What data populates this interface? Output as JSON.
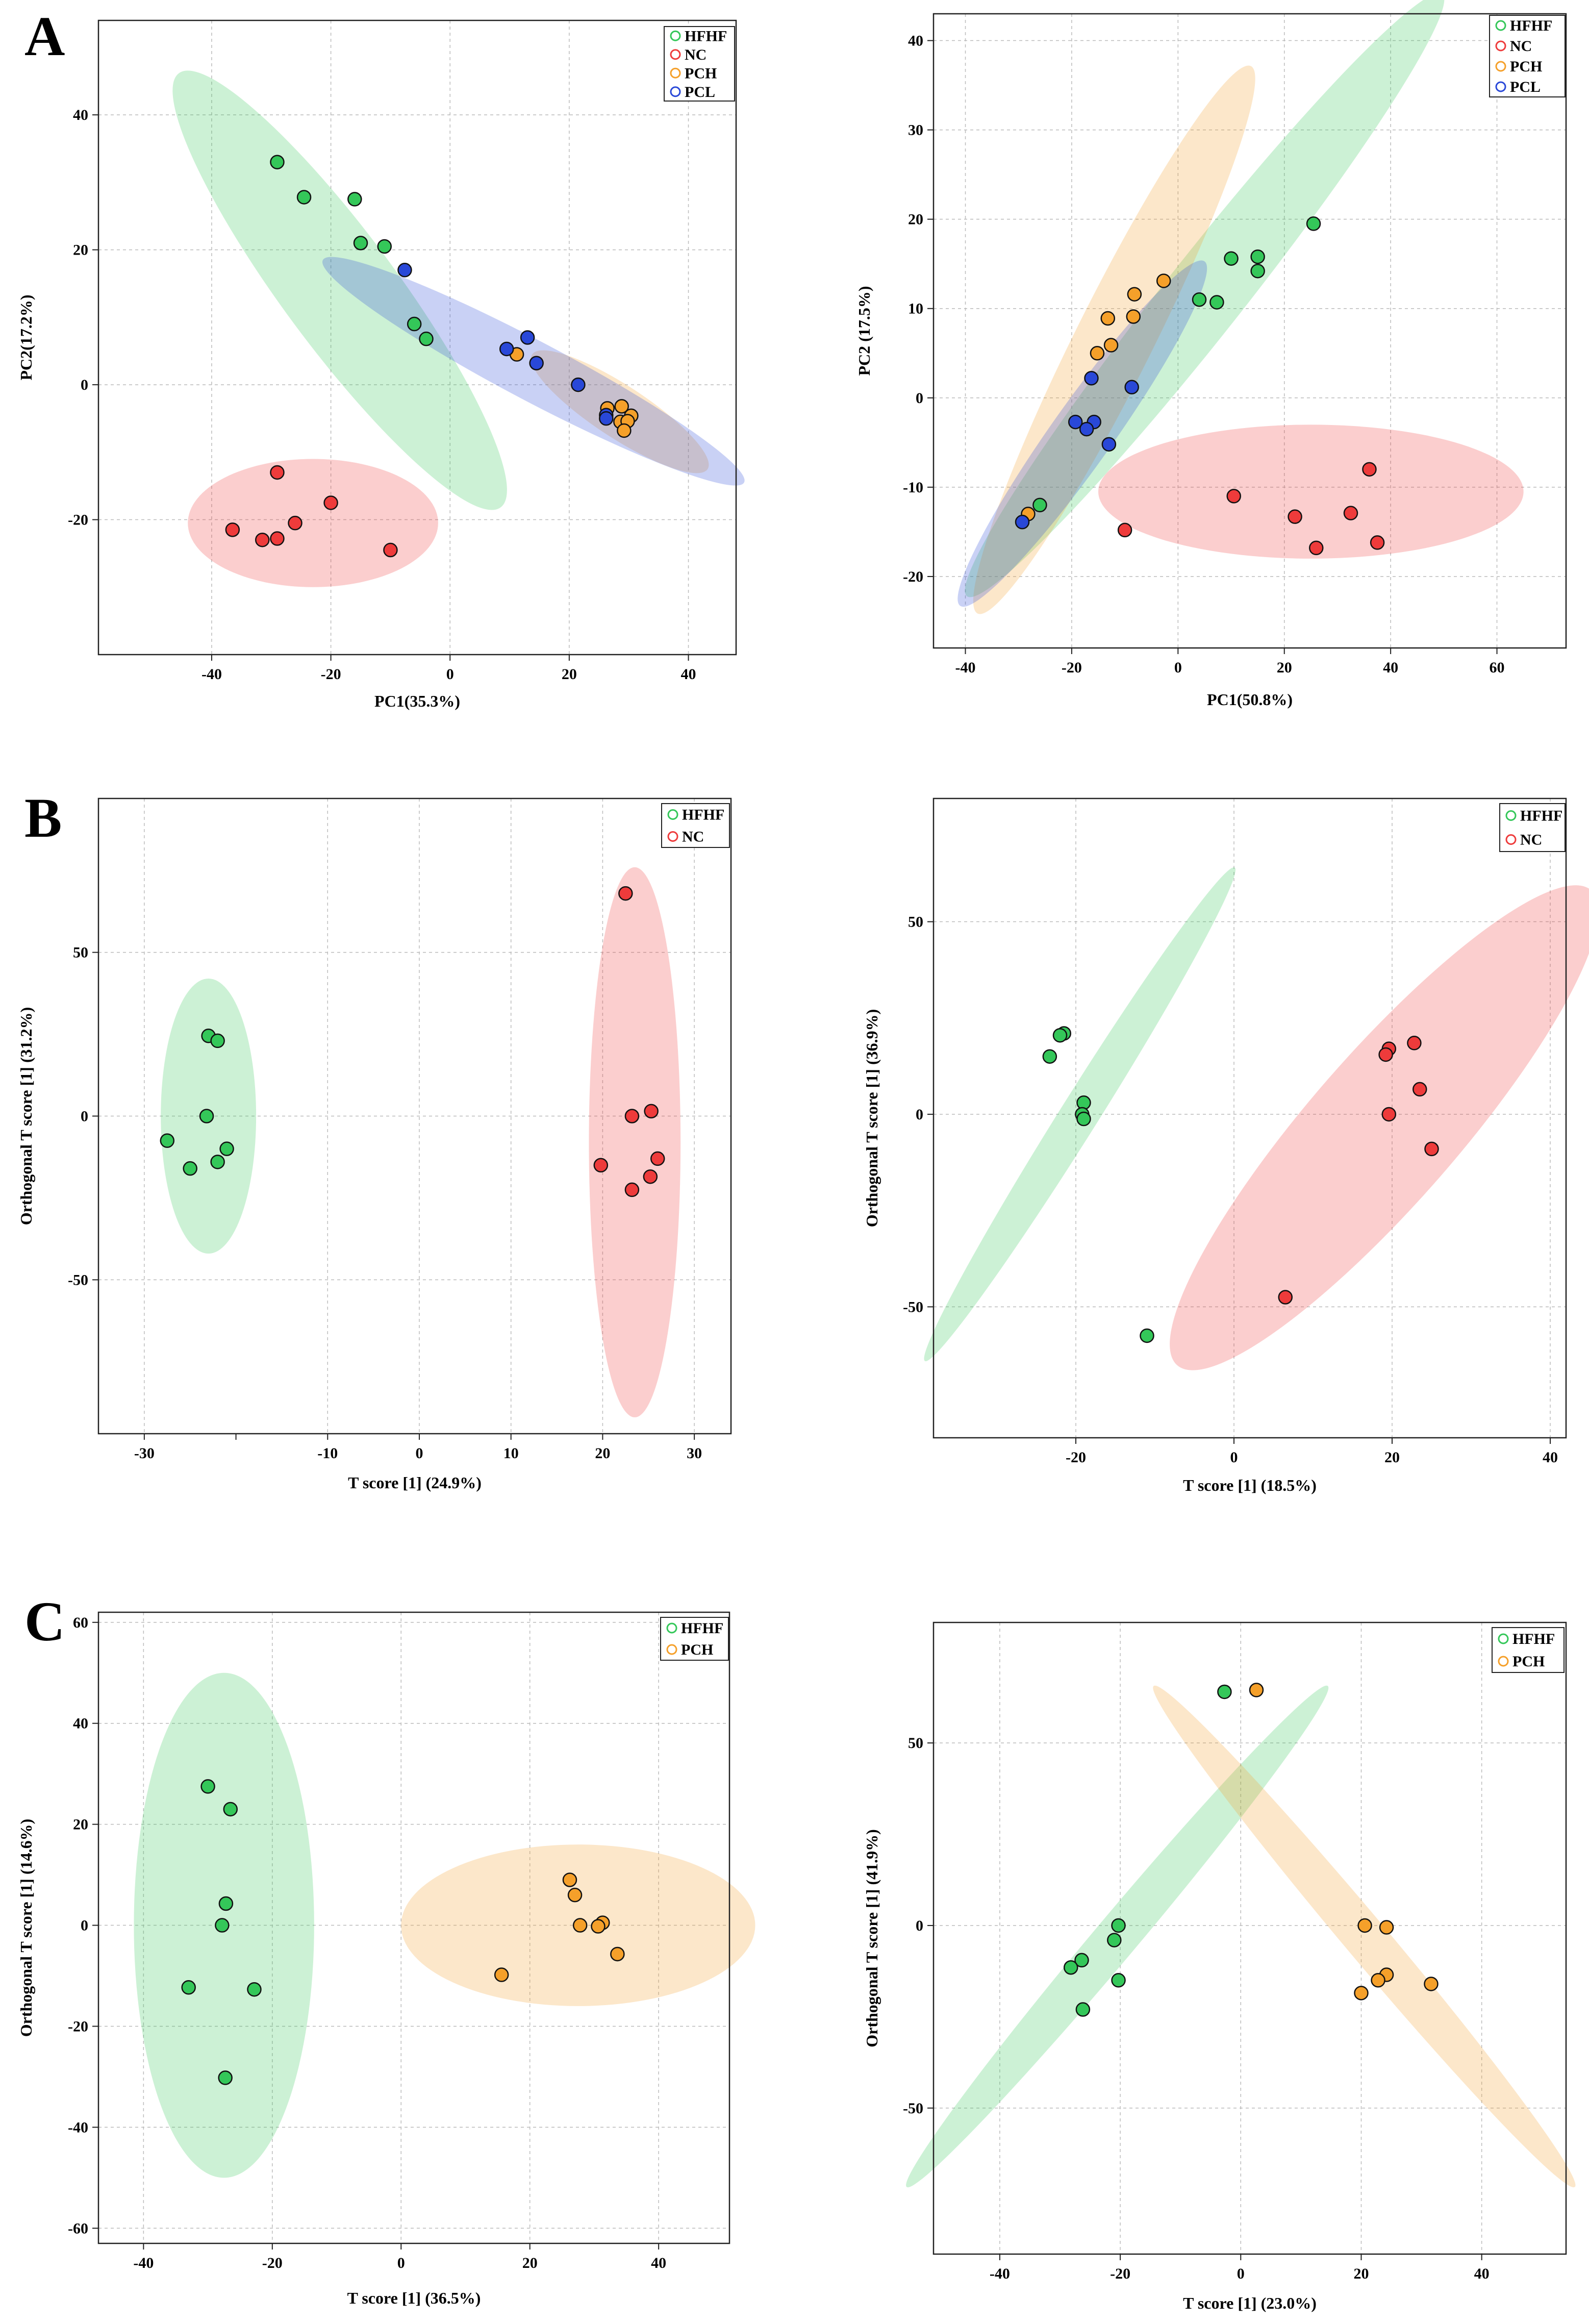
{
  "figure": {
    "panel_labels": [
      "A",
      "B",
      "C"
    ],
    "group_colors": {
      "HFHF": "#34c759",
      "NC": "#ee3b3b",
      "PCH": "#f5a02a",
      "PCL": "#2948d8"
    }
  },
  "chart_data": [
    {
      "id": "A1",
      "panel": "A",
      "type": "scatter",
      "xlabel": "PC1(35.3%)",
      "ylabel": "PC2(17.2%)",
      "xlim": [
        -59,
        48
      ],
      "ylim": [
        -40,
        54
      ],
      "xticks": [
        -40,
        -20,
        0,
        20,
        40
      ],
      "yticks": [
        -20,
        0,
        20,
        40
      ],
      "grid": true,
      "legend": [
        "HFHF",
        "NC",
        "PCH",
        "PCL"
      ],
      "series": [
        {
          "name": "HFHF",
          "points": [
            [
              -29,
              33
            ],
            [
              -24.5,
              27.8
            ],
            [
              -16,
              27.5
            ],
            [
              -15,
              21
            ],
            [
              -11,
              20.5
            ],
            [
              -6,
              9
            ],
            [
              -4,
              6.8
            ]
          ]
        },
        {
          "name": "NC",
          "points": [
            [
              -29,
              -13
            ],
            [
              -20,
              -17.5
            ],
            [
              -36.5,
              -21.5
            ],
            [
              -26,
              -20.5
            ],
            [
              -31.5,
              -23
            ],
            [
              -29,
              -22.8
            ],
            [
              -10,
              -24.5
            ]
          ]
        },
        {
          "name": "PCH",
          "points": [
            [
              11.2,
              4.5
            ],
            [
              26.4,
              -3.5
            ],
            [
              28.8,
              -3.2
            ],
            [
              30.4,
              -4.6
            ],
            [
              28.6,
              -5.5
            ],
            [
              29.8,
              -5.4
            ],
            [
              29.2,
              -6.8
            ]
          ]
        },
        {
          "name": "PCL",
          "points": [
            [
              -7.6,
              17
            ],
            [
              9.5,
              5.3
            ],
            [
              13,
              7
            ],
            [
              14.5,
              3.2
            ],
            [
              21.5,
              0
            ],
            [
              26.2,
              -4.5
            ],
            [
              26.2,
              -5
            ]
          ]
        }
      ],
      "ellipses": [
        {
          "group": "HFHF",
          "center": [
            -18.5,
            14
          ],
          "rx": 42,
          "ry": 9,
          "angle": -50
        },
        {
          "group": "NC",
          "center": [
            -23,
            -20.5
          ],
          "rx": 21,
          "ry": 9.5,
          "angle": 0
        },
        {
          "group": "PCH",
          "center": [
            28.5,
            -4
          ],
          "rx": 17,
          "ry": 4,
          "angle": -30
        },
        {
          "group": "PCL",
          "center": [
            14,
            2
          ],
          "rx": 39,
          "ry": 4.5,
          "angle": -25
        }
      ]
    },
    {
      "id": "A2",
      "panel": "A",
      "type": "scatter",
      "xlabel": "PC1(50.8%)",
      "ylabel": "PC2 (17.5%)",
      "xlim": [
        -46,
        73
      ],
      "ylim": [
        -28,
        43
      ],
      "xticks": [
        -40,
        -20,
        0,
        20,
        40,
        60
      ],
      "yticks": [
        -20,
        -10,
        0,
        10,
        20,
        30,
        40
      ],
      "grid": true,
      "legend": [
        "HFHF",
        "NC",
        "PCH",
        "PCL"
      ],
      "series": [
        {
          "name": "HFHF",
          "points": [
            [
              25.5,
              19.5
            ],
            [
              15,
              15.8
            ],
            [
              10,
              15.6
            ],
            [
              15,
              14.2
            ],
            [
              4,
              11
            ],
            [
              7.3,
              10.7
            ],
            [
              -26,
              -12
            ]
          ]
        },
        {
          "name": "NC",
          "points": [
            [
              36,
              -8
            ],
            [
              10.5,
              -11
            ],
            [
              22,
              -13.3
            ],
            [
              32.5,
              -12.9
            ],
            [
              37.5,
              -16.2
            ],
            [
              26,
              -16.8
            ],
            [
              -10,
              -14.8
            ]
          ]
        },
        {
          "name": "PCH",
          "points": [
            [
              -2.7,
              13.1
            ],
            [
              -8.2,
              11.6
            ],
            [
              -8.4,
              9.1
            ],
            [
              -13.2,
              8.9
            ],
            [
              -12.6,
              5.9
            ],
            [
              -15.2,
              5
            ],
            [
              -28.2,
              -13
            ]
          ]
        },
        {
          "name": "PCL",
          "points": [
            [
              -16.3,
              2.2
            ],
            [
              -8.7,
              1.2
            ],
            [
              -19.3,
              -2.7
            ],
            [
              -15.8,
              -2.7
            ],
            [
              -17.2,
              -3.5
            ],
            [
              -13,
              -5.2
            ],
            [
              -29.3,
              -13.9
            ]
          ]
        }
      ],
      "ellipses": [
        {
          "group": "HFHF",
          "center": [
            5,
            11.5
          ],
          "rx": 56,
          "ry": 5,
          "angle": 37
        },
        {
          "group": "NC",
          "center": [
            25,
            -10.5
          ],
          "rx": 40,
          "ry": 7.5,
          "angle": 0
        },
        {
          "group": "PCH",
          "center": [
            -12,
            6.5
          ],
          "rx": 40,
          "ry": 5.5,
          "angle": 50
        },
        {
          "group": "PCL",
          "center": [
            -18,
            -4
          ],
          "rx": 30,
          "ry": 4,
          "angle": 40
        }
      ]
    },
    {
      "id": "B1",
      "panel": "B",
      "type": "scatter",
      "xlabel": "T score [1] (24.9%)",
      "ylabel": "Orthogonal T score [1] (31.2%)",
      "xlim": [
        -35,
        34
      ],
      "ylim": [
        -97,
        97
      ],
      "xticks": [
        -30,
        -10,
        0,
        10,
        20,
        30
      ],
      "extra_xtick_at": -20,
      "yticks": [
        -50,
        0,
        50
      ],
      "grid": true,
      "legend": [
        "HFHF",
        "NC"
      ],
      "series": [
        {
          "name": "HFHF",
          "points": [
            [
              -23,
              24.5
            ],
            [
              -22,
              23
            ],
            [
              -23.2,
              0
            ],
            [
              -27.5,
              -7.5
            ],
            [
              -21,
              -10
            ],
            [
              -22,
              -14
            ],
            [
              -25,
              -16
            ]
          ]
        },
        {
          "name": "NC",
          "points": [
            [
              22.5,
              68
            ],
            [
              25.3,
              1.5
            ],
            [
              23.2,
              0
            ],
            [
              26,
              -13
            ],
            [
              19.8,
              -15
            ],
            [
              25.2,
              -18.5
            ],
            [
              23.2,
              -22.5
            ]
          ]
        }
      ],
      "ellipses": [
        {
          "group": "HFHF",
          "center": [
            -23,
            0
          ],
          "rx": 5.2,
          "ry": 42,
          "angle": 0
        },
        {
          "group": "NC",
          "center": [
            23.5,
            -8
          ],
          "rx": 5,
          "ry": 84,
          "angle": 0
        }
      ]
    },
    {
      "id": "B2",
      "panel": "B",
      "type": "scatter",
      "xlabel": "T score [1] (18.5%)",
      "ylabel": "Orthogonal T score [1] (36.9%)",
      "xlim": [
        -38,
        42
      ],
      "ylim": [
        -84,
        82
      ],
      "xticks": [
        -20,
        0,
        20,
        40
      ],
      "yticks": [
        -50,
        0,
        50
      ],
      "grid": true,
      "legend": [
        "HFHF",
        "NC"
      ],
      "series": [
        {
          "name": "HFHF",
          "points": [
            [
              -21.5,
              21
            ],
            [
              -22,
              20.5
            ],
            [
              -23.3,
              15
            ],
            [
              -19,
              3
            ],
            [
              -19.2,
              0
            ],
            [
              -19,
              -1.2
            ],
            [
              -11,
              -57.5
            ]
          ]
        },
        {
          "name": "NC",
          "points": [
            [
              22.8,
              18.5
            ],
            [
              19.6,
              17
            ],
            [
              19.2,
              15.5
            ],
            [
              23.5,
              6.5
            ],
            [
              19.6,
              0
            ],
            [
              25,
              -9
            ],
            [
              6.5,
              -47.5
            ]
          ]
        }
      ],
      "ellipses": [
        {
          "group": "HFHF",
          "center": [
            -19.5,
            0
          ],
          "rx": 67,
          "ry": 2.5,
          "angle": 73
        },
        {
          "group": "NC",
          "center": [
            19,
            -3.5
          ],
          "rx": 67,
          "ry": 10,
          "angle": 67
        }
      ]
    },
    {
      "id": "C1",
      "panel": "C",
      "type": "scatter",
      "xlabel": "T score [1] (36.5%)",
      "ylabel": "Orthogonal T score [1] (14.6%)",
      "xlim": [
        -47,
        51
      ],
      "ylim": [
        -63,
        62
      ],
      "xticks": [
        -40,
        -20,
        0,
        20,
        40
      ],
      "yticks": [
        -60,
        -40,
        -20,
        0,
        20,
        40,
        60
      ],
      "grid": true,
      "legend": [
        "HFHF",
        "PCH"
      ],
      "series": [
        {
          "name": "HFHF",
          "points": [
            [
              -30,
              27.5
            ],
            [
              -26.5,
              23
            ],
            [
              -27.2,
              4.3
            ],
            [
              -27.8,
              0
            ],
            [
              -33,
              -12.3
            ],
            [
              -22.8,
              -12.7
            ],
            [
              -27.3,
              -30.2
            ]
          ]
        },
        {
          "name": "PCH",
          "points": [
            [
              26.2,
              9
            ],
            [
              27,
              6
            ],
            [
              27.8,
              0
            ],
            [
              31.3,
              0.5
            ],
            [
              30.6,
              -0.2
            ],
            [
              33.6,
              -5.7
            ],
            [
              15.6,
              -9.8
            ]
          ]
        }
      ],
      "ellipses": [
        {
          "group": "HFHF",
          "center": [
            -27.5,
            0
          ],
          "rx": 14,
          "ry": 50,
          "angle": 0
        },
        {
          "group": "PCH",
          "center": [
            27.5,
            0
          ],
          "rx": 27.5,
          "ry": 16,
          "angle": 0
        }
      ]
    },
    {
      "id": "C2",
      "panel": "C",
      "type": "scatter",
      "xlabel": "T score [1] (23.0%)",
      "ylabel": "Orthogonal T score [1] (41.9%)",
      "xlim": [
        -51,
        54
      ],
      "ylim": [
        -90,
        83
      ],
      "xticks": [
        -40,
        -20,
        0,
        20,
        40
      ],
      "yticks": [
        -50,
        0,
        50
      ],
      "grid": true,
      "legend": [
        "HFHF",
        "PCH"
      ],
      "series": [
        {
          "name": "HFHF",
          "points": [
            [
              -2.7,
              64
            ],
            [
              -20.3,
              0
            ],
            [
              -21,
              -4
            ],
            [
              -26.4,
              -9.5
            ],
            [
              -28.2,
              -11.5
            ],
            [
              -20.3,
              -15
            ],
            [
              -26.2,
              -23
            ]
          ]
        },
        {
          "name": "PCH",
          "points": [
            [
              2.6,
              64.5
            ],
            [
              20.6,
              0
            ],
            [
              24.2,
              -0.5
            ],
            [
              24.2,
              -13.5
            ],
            [
              22.8,
              -15
            ],
            [
              31.6,
              -16
            ],
            [
              20,
              -18.5
            ]
          ]
        }
      ],
      "ellipses": [
        {
          "group": "HFHF",
          "center": [
            -20.5,
            -3
          ],
          "rx": 77,
          "ry": 3.8,
          "angle": 63
        },
        {
          "group": "PCH",
          "center": [
            20.5,
            -3
          ],
          "rx": 77,
          "ry": 3.8,
          "angle": -63
        }
      ]
    }
  ]
}
